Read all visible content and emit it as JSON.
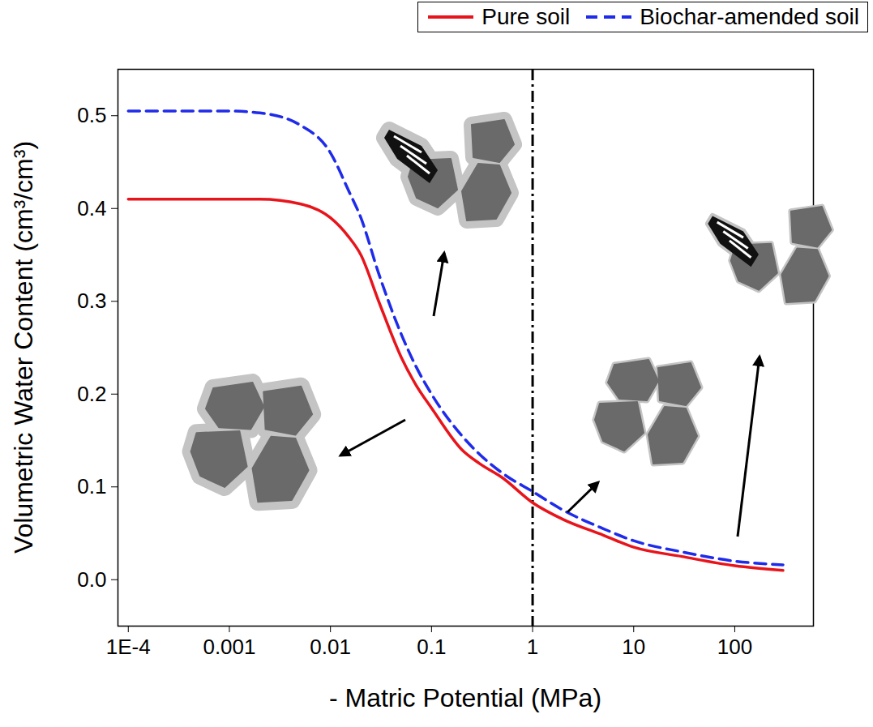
{
  "chart_data": {
    "type": "line",
    "xlabel": "- Matric Potential (MPa)",
    "ylabel": "Volumetric Water Content (cm³/cm³)",
    "log": "x",
    "legend": "top",
    "x": [
      0.0001,
      0.001,
      0.002,
      0.005,
      0.01,
      0.015,
      0.02,
      0.03,
      0.05,
      0.07,
      0.1,
      0.2,
      0.3,
      0.5,
      1,
      2,
      5,
      10,
      30,
      100,
      300
    ],
    "series": [
      {
        "name": "Pure soil",
        "color": "#e8141b",
        "line_style": "solid",
        "values": [
          0.41,
          0.41,
          0.41,
          0.405,
          0.39,
          0.37,
          0.35,
          0.3,
          0.24,
          0.21,
          0.185,
          0.14,
          0.125,
          0.11,
          0.083,
          0.065,
          0.048,
          0.035,
          0.025,
          0.015,
          0.01
        ]
      },
      {
        "name": "Biochar-amended soil",
        "color": "#1f2bea",
        "line_style": "dashed",
        "values": [
          0.505,
          0.505,
          0.503,
          0.49,
          0.46,
          0.42,
          0.39,
          0.33,
          0.265,
          0.23,
          0.2,
          0.155,
          0.135,
          0.115,
          0.095,
          0.075,
          0.055,
          0.042,
          0.03,
          0.02,
          0.016
        ]
      }
    ],
    "vlines": [
      1
    ],
    "xlim": [
      7.9e-05,
      600
    ],
    "xticks": [
      {
        "value": 0.0001,
        "label": "1E-4"
      },
      0.001,
      0.01,
      0.1,
      1,
      10,
      100
    ],
    "ylim": [
      -0.05,
      0.55
    ],
    "yticks": [
      {
        "value": 0,
        "label": "0.0"
      },
      0.1,
      0.2,
      0.3,
      0.4,
      0.5
    ]
  }
}
